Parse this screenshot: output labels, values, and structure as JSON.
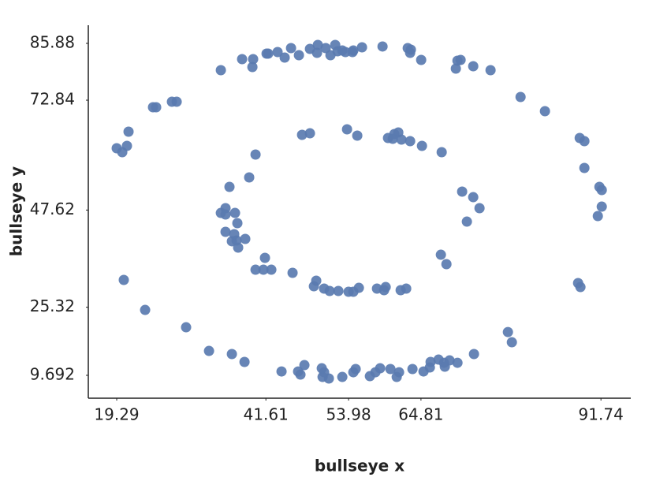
{
  "chart_data": {
    "type": "scatter",
    "x_label": "bullseye x",
    "y_label": "bullseye y",
    "color": "#5a7bb0",
    "xlim": [
      15.04,
      96.2
    ],
    "ylim": [
      4.44,
      90.04
    ],
    "xticks": [
      19.29,
      41.61,
      53.98,
      64.81,
      91.74
    ],
    "yticks": [
      9.692,
      25.32,
      47.62,
      72.84,
      85.88
    ],
    "grid": false,
    "x": [
      34.87,
      38.05,
      39.7,
      39.59,
      41.71,
      41.95,
      43.36,
      44.42,
      45.37,
      46.55,
      48.2,
      49.38,
      49.26,
      50.56,
      51.27,
      51.98,
      52.33,
      53.04,
      53.51,
      54.57,
      54.69,
      55.99,
      59.06,
      62.83,
      63.3,
      63.19,
      64.84,
      70.27,
      70.74,
      70.03,
      72.63,
      75.22,
      79.71,
      83.36,
      88.56,
      89.26,
      89.26,
      91.51,
      91.86,
      91.86,
      91.27,
      88.32,
      88.67,
      77.82,
      78.41,
      72.74,
      70.27,
      69.09,
      68.26,
      67.44,
      68.38,
      66.25,
      66.14,
      65.19,
      63.54,
      61.53,
      61.18,
      60.24,
      58.7,
      57.17,
      57.99,
      55.04,
      54.69,
      53.04,
      51.03,
      50.09,
      50.32,
      49.97,
      47.37,
      46.78,
      46.43,
      43.95,
      38.41,
      36.52,
      33.1,
      29.67,
      23.54,
      20.35,
      19.29,
      20.12,
      20.82,
      21.06,
      24.72,
      25.19,
      27.55,
      28.26,
      47.02,
      48.2,
      53.75,
      55.28,
      59.88,
      60.83,
      61.42,
      60.59,
      61.89,
      63.19,
      64.96,
      67.91,
      70.97,
      72.63,
      73.57,
      71.68,
      67.79,
      68.62,
      62.6,
      61.77,
      59.53,
      59.29,
      58.23,
      55.52,
      54.69,
      53.98,
      52.45,
      51.15,
      50.32,
      49.14,
      48.79,
      45.6,
      42.42,
      41.47,
      41.24,
      40.06,
      38.52,
      37.46,
      37.22,
      36.52,
      35.57,
      36.87,
      37.34,
      36.99,
      35.57,
      34.87,
      35.57,
      36.16,
      39.11,
      40.06
    ],
    "values": [
      79.73,
      82.26,
      82.26,
      80.45,
      83.53,
      83.53,
      83.89,
      82.62,
      84.79,
      83.16,
      84.61,
      85.52,
      83.71,
      84.79,
      83.16,
      85.52,
      84.07,
      84.25,
      83.89,
      83.89,
      84.25,
      84.97,
      85.16,
      84.79,
      84.43,
      83.71,
      82.08,
      81.9,
      82.08,
      80.09,
      80.63,
      79.73,
      73.57,
      70.31,
      64.16,
      63.44,
      57.28,
      52.94,
      52.22,
      48.41,
      46.24,
      30.86,
      29.95,
      19.63,
      17.28,
      14.57,
      12.57,
      13.12,
      12.57,
      13.3,
      11.67,
      12.76,
      11.49,
      10.58,
      11.13,
      10.4,
      9.32,
      11.13,
      11.31,
      9.5,
      10.4,
      11.13,
      10.4,
      9.32,
      8.96,
      9.32,
      10.4,
      11.31,
      12.03,
      9.86,
      10.58,
      10.58,
      12.76,
      14.57,
      15.29,
      20.72,
      24.7,
      31.58,
      61.81,
      60.9,
      62.35,
      65.61,
      71.22,
      71.22,
      72.49,
      72.49,
      64.88,
      65.24,
      66.15,
      64.7,
      64.16,
      65.07,
      65.43,
      63.98,
      63.8,
      63.44,
      62.35,
      60.9,
      51.85,
      50.58,
      48.05,
      44.97,
      37.37,
      35.2,
      29.59,
      29.23,
      29.95,
      29.23,
      29.59,
      29.77,
      28.87,
      28.87,
      29.05,
      29.05,
      29.59,
      31.4,
      30.13,
      33.21,
      33.93,
      36.65,
      33.93,
      33.93,
      41.0,
      39.01,
      40.64,
      40.46,
      42.63,
      42.08,
      44.61,
      46.96,
      48.05,
      46.96,
      46.6,
      52.94,
      55.11,
      60.36
    ]
  }
}
